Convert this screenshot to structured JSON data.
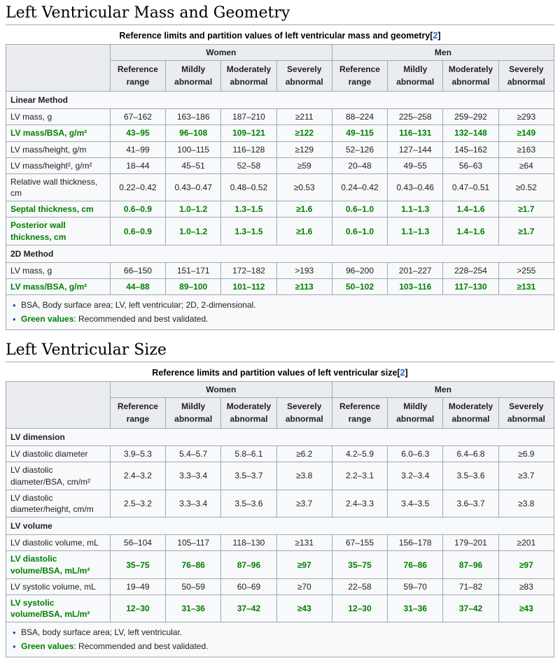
{
  "palette": {
    "green_accent": "#008000",
    "link_blue": "#1667d3",
    "header_bg": "#eaecf0",
    "cell_bg": "#f8f9fa",
    "border": "#a2a9b1"
  },
  "sections": [
    {
      "heading": "Left Ventricular Mass and Geometry",
      "caption": {
        "text": "Reference limits and partition values of left ventricular mass and geometry",
        "ref": "2"
      },
      "groups": [
        "Women",
        "Men"
      ],
      "sub_headers": [
        "Reference range",
        "Mildly abnormal",
        "Moderately abnormal",
        "Severely abnormal"
      ],
      "rows": [
        {
          "type": "section",
          "label": "Linear Method"
        },
        {
          "type": "data",
          "green": false,
          "label": "LV mass, g",
          "values": [
            "67–162",
            "163–186",
            "187–210",
            "≥211",
            "88–224",
            "225–258",
            "259–292",
            "≥293"
          ]
        },
        {
          "type": "data",
          "green": true,
          "label": "LV mass/BSA, g/m²",
          "values": [
            "43–95",
            "96–108",
            "109–121",
            "≥122",
            "49–115",
            "116–131",
            "132–148",
            "≥149"
          ]
        },
        {
          "type": "data",
          "green": false,
          "label": "LV mass/height, g/m",
          "values": [
            "41–99",
            "100–115",
            "116–128",
            "≥129",
            "52–126",
            "127–144",
            "145–162",
            "≥163"
          ]
        },
        {
          "type": "data",
          "green": false,
          "label": "LV mass/height², g/m²",
          "values": [
            "18–44",
            "45–51",
            "52–58",
            "≥59",
            "20–48",
            "49–55",
            "56–63",
            "≥64"
          ]
        },
        {
          "type": "data",
          "green": false,
          "label": "Relative wall thickness, cm",
          "values": [
            "0.22–0.42",
            "0.43–0.47",
            "0.48–0.52",
            "≥0.53",
            "0.24–0.42",
            "0.43–0.46",
            "0.47–0.51",
            "≥0.52"
          ]
        },
        {
          "type": "data",
          "green": true,
          "label": "Septal thickness, cm",
          "values": [
            "0.6–0.9",
            "1.0–1.2",
            "1.3–1.5",
            "≥1.6",
            "0.6–1.0",
            "1.1–1.3",
            "1.4–1.6",
            "≥1.7"
          ]
        },
        {
          "type": "data",
          "green": true,
          "label": "Posterior wall thickness, cm",
          "values": [
            "0.6–0.9",
            "1.0–1.2",
            "1.3–1.5",
            "≥1.6",
            "0.6–1.0",
            "1.1–1.3",
            "1.4–1.6",
            "≥1.7"
          ]
        },
        {
          "type": "section",
          "label": "2D Method"
        },
        {
          "type": "data",
          "green": false,
          "label": "LV mass, g",
          "values": [
            "66–150",
            "151–171",
            "172–182",
            ">193",
            "96–200",
            "201–227",
            "228–254",
            ">255"
          ]
        },
        {
          "type": "data",
          "green": true,
          "label": "LV mass/BSA, g/m²",
          "values": [
            "44–88",
            "89–100",
            "101–112",
            "≥113",
            "50–102",
            "103–116",
            "117–130",
            "≥131"
          ]
        }
      ],
      "footnotes": [
        [
          {
            "text": "BSA, Body surface area; LV, left ventricular; 2D, 2-dimensional.",
            "green": false
          }
        ],
        [
          {
            "text": "Green values",
            "green": true
          },
          {
            "text": ": Recommended and best validated.",
            "green": false
          }
        ]
      ]
    },
    {
      "heading": "Left Ventricular Size",
      "caption": {
        "text": "Reference limits and partition values of left ventricular size",
        "ref": "2"
      },
      "groups": [
        "Women",
        "Men"
      ],
      "sub_headers": [
        "Reference range",
        "Mildly abnormal",
        "Moderately abnormal",
        "Severely abnormal"
      ],
      "rows": [
        {
          "type": "section",
          "label": "LV dimension"
        },
        {
          "type": "data",
          "green": false,
          "label": "LV diastolic diameter",
          "values": [
            "3.9–5.3",
            "5.4–5.7",
            "5.8–6.1",
            "≥6.2",
            "4.2–5.9",
            "6.0–6.3",
            "6.4–6.8",
            "≥6.9"
          ]
        },
        {
          "type": "data",
          "green": false,
          "label": "LV diastolic diameter/BSA, cm/m²",
          "values": [
            "2.4–3.2",
            "3.3–3.4",
            "3.5–3.7",
            "≥3.8",
            "2.2–3.1",
            "3.2–3.4",
            "3.5–3.6",
            "≥3.7"
          ]
        },
        {
          "type": "data",
          "green": false,
          "label": "LV diastolic diameter/height, cm/m",
          "values": [
            "2.5–3.2",
            "3.3–3.4",
            "3.5–3.6",
            "≥3.7",
            "2.4–3.3",
            "3.4–3.5",
            "3.6–3.7",
            "≥3.8"
          ]
        },
        {
          "type": "section",
          "label": "LV volume"
        },
        {
          "type": "data",
          "green": false,
          "label": "LV diastolic volume, mL",
          "values": [
            "56–104",
            "105–117",
            "118–130",
            "≥131",
            "67–155",
            "156–178",
            "179–201",
            "≥201"
          ]
        },
        {
          "type": "data",
          "green": true,
          "label": "LV diastolic volume/BSA, mL/m²",
          "values": [
            "35–75",
            "76–86",
            "87–96",
            "≥97",
            "35–75",
            "76–86",
            "87–96",
            "≥97"
          ]
        },
        {
          "type": "data",
          "green": false,
          "label": "LV systolic volume, mL",
          "values": [
            "19–49",
            "50–59",
            "60–69",
            "≥70",
            "22–58",
            "59–70",
            "71–82",
            "≥83"
          ]
        },
        {
          "type": "data",
          "green": true,
          "label": "LV systolic volume/BSA, mL/m²",
          "values": [
            "12–30",
            "31–36",
            "37–42",
            "≥43",
            "12–30",
            "31–36",
            "37–42",
            "≥43"
          ]
        }
      ],
      "footnotes": [
        [
          {
            "text": "BSA, body surface area; LV, left ventricular.",
            "green": false
          }
        ],
        [
          {
            "text": "Green values",
            "green": true
          },
          {
            "text": ": Recommended and best validated.",
            "green": false
          }
        ]
      ]
    }
  ]
}
